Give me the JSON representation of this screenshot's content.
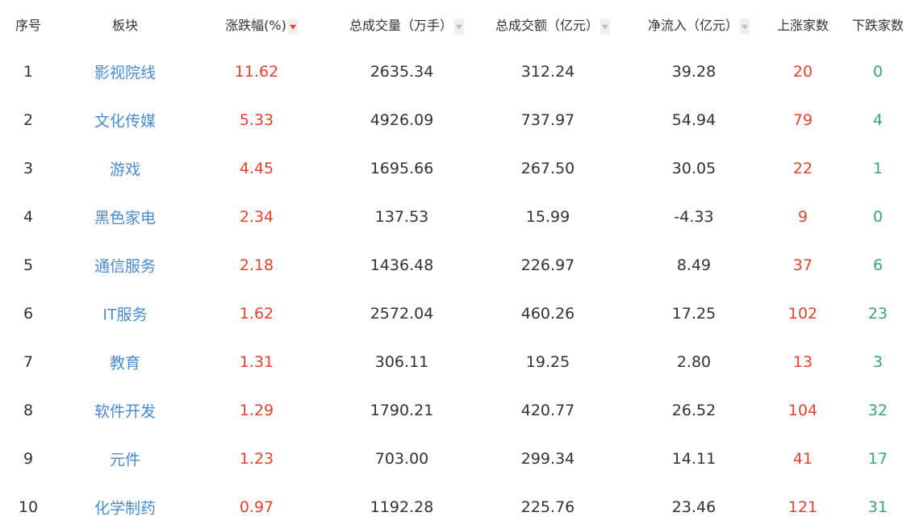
{
  "colors": {
    "up": "#e0432f",
    "down": "#3aa86a",
    "link": "#4a8ad0",
    "sort_active": "#e0432f",
    "sort_inactive": "#bbbbbb"
  },
  "headers": [
    {
      "label": "序号",
      "sort": null
    },
    {
      "label": "板块",
      "sort": null
    },
    {
      "label": "涨跌幅(%)",
      "sort": "desc-active"
    },
    {
      "label": "总成交量（万手）",
      "sort": "inactive"
    },
    {
      "label": "总成交额（亿元）",
      "sort": "inactive"
    },
    {
      "label": "净流入（亿元）",
      "sort": "inactive"
    },
    {
      "label": "上涨家数",
      "sort": null
    },
    {
      "label": "下跌家数",
      "sort": null
    }
  ],
  "rows": [
    [
      "1",
      "影视院线",
      "11.62",
      "2635.34",
      "312.24",
      "39.28",
      "20",
      "0"
    ],
    [
      "2",
      "文化传媒",
      "5.33",
      "4926.09",
      "737.97",
      "54.94",
      "79",
      "4"
    ],
    [
      "3",
      "游戏",
      "4.45",
      "1695.66",
      "267.50",
      "30.05",
      "22",
      "1"
    ],
    [
      "4",
      "黑色家电",
      "2.34",
      "137.53",
      "15.99",
      "-4.33",
      "9",
      "0"
    ],
    [
      "5",
      "通信服务",
      "2.18",
      "1436.48",
      "226.97",
      "8.49",
      "37",
      "6"
    ],
    [
      "6",
      "IT服务",
      "1.62",
      "2572.04",
      "460.26",
      "17.25",
      "102",
      "23"
    ],
    [
      "7",
      "教育",
      "1.31",
      "306.11",
      "19.25",
      "2.80",
      "13",
      "3"
    ],
    [
      "8",
      "软件开发",
      "1.29",
      "1790.21",
      "420.77",
      "26.52",
      "104",
      "32"
    ],
    [
      "9",
      "元件",
      "1.23",
      "703.00",
      "299.34",
      "14.11",
      "41",
      "17"
    ],
    [
      "10",
      "化学制药",
      "0.97",
      "1192.28",
      "225.76",
      "23.46",
      "121",
      "31"
    ]
  ]
}
